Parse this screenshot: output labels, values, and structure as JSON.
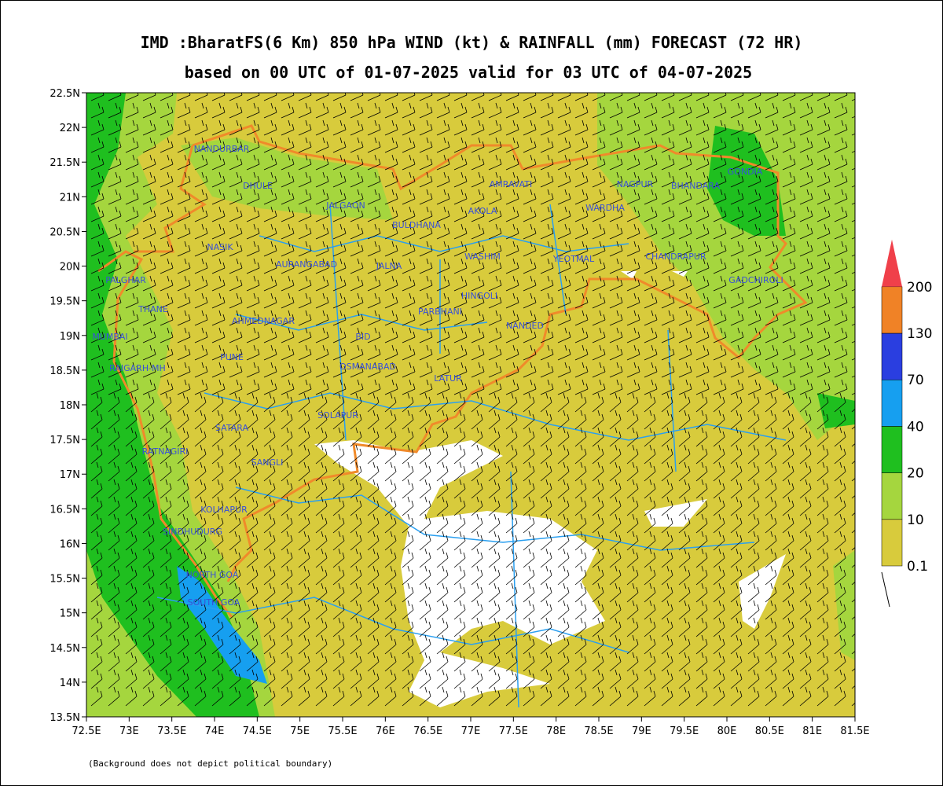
{
  "title": {
    "line1": "IMD :BharatFS(6 Km) 850 hPa WIND (kt) & RAINFALL (mm) FORECAST (72 HR)",
    "line2": "based on 00 UTC of 01-07-2025 valid for 03 UTC of 04-07-2025"
  },
  "map": {
    "lon_ticks": [
      "72.5E",
      "73E",
      "73.5E",
      "74E",
      "74.5E",
      "75E",
      "75.5E",
      "76E",
      "76.5E",
      "77E",
      "77.5E",
      "78E",
      "78.5E",
      "79E",
      "79.5E",
      "80E",
      "80.5E",
      "81E",
      "81.5E"
    ],
    "lat_ticks": [
      "22.5N",
      "22N",
      "21.5N",
      "21N",
      "20.5N",
      "20N",
      "19.5N",
      "19N",
      "18.5N",
      "18N",
      "17.5N",
      "17N",
      "16.5N",
      "16N",
      "15.5N",
      "15N",
      "14.5N",
      "14N",
      "13.5N"
    ]
  },
  "legend": {
    "levels": [
      0.1,
      10,
      20,
      40,
      70,
      130,
      200
    ],
    "colors": [
      "#d8cb3c",
      "#a5d63e",
      "#1fbf1f",
      "#169ff0",
      "#2a3ee0",
      "#f08226",
      "#f0404a"
    ]
  },
  "districts": [
    "NANDURBAR",
    "DHULE",
    "JALGAON",
    "BULDHANA",
    "AMRAVATI",
    "AKOLA",
    "NAGPUR",
    "BHANDARA",
    "GONDIA",
    "WARDHA",
    "NASIK",
    "AURANGABAD",
    "JALNA",
    "WASHIM",
    "YEOTMAL",
    "CHANDRAPUR",
    "GADCHIROLI",
    "PALGHAR",
    "THANE",
    "MUMBAI",
    "AHMEDNAGAR",
    "HINGOLI",
    "PARBHANI",
    "NANDED",
    "BID",
    "RAIGARH-MH",
    "PUNE",
    "OSMANABAD",
    "LATUR",
    "SOLAPUR",
    "SATARA",
    "RATNAGIRI",
    "SANGLI",
    "KOLHAPUR",
    "SINDHUDURG",
    "NORTH GOA",
    "SOUTH GOA"
  ],
  "footnote": "(Background does not depict political boundary)"
}
